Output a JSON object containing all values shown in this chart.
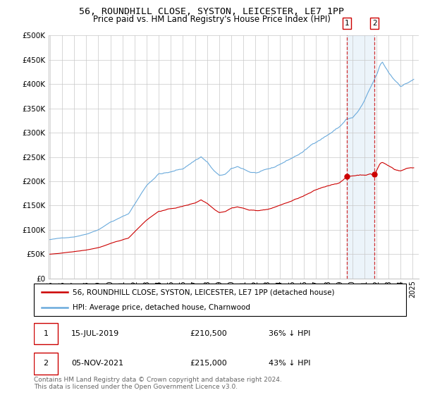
{
  "title": "56, ROUNDHILL CLOSE, SYSTON, LEICESTER, LE7 1PP",
  "subtitle": "Price paid vs. HM Land Registry's House Price Index (HPI)",
  "hpi_label": "HPI: Average price, detached house, Charnwood",
  "price_label": "56, ROUNDHILL CLOSE, SYSTON, LEICESTER, LE7 1PP (detached house)",
  "hpi_color": "#6aaadc",
  "price_color": "#cc0000",
  "vline_color": "#cc0000",
  "footer": "Contains HM Land Registry data © Crown copyright and database right 2024.\nThis data is licensed under the Open Government Licence v3.0.",
  "ylim": [
    0,
    500000
  ],
  "yticks": [
    0,
    50000,
    100000,
    150000,
    200000,
    250000,
    300000,
    350000,
    400000,
    450000,
    500000
  ],
  "ytick_labels": [
    "£0",
    "£50K",
    "£100K",
    "£150K",
    "£200K",
    "£250K",
    "£300K",
    "£350K",
    "£400K",
    "£450K",
    "£500K"
  ],
  "sale1_year": 2019.54,
  "sale1_price": 210500,
  "sale1_label": "15-JUL-2019",
  "sale1_pct": "36% ↓ HPI",
  "sale2_year": 2021.84,
  "sale2_price": 215000,
  "sale2_label": "05-NOV-2021",
  "sale2_pct": "43% ↓ HPI",
  "xlim_left": 1995.0,
  "xlim_right": 2025.5,
  "bg_color": "#f0f4fa"
}
